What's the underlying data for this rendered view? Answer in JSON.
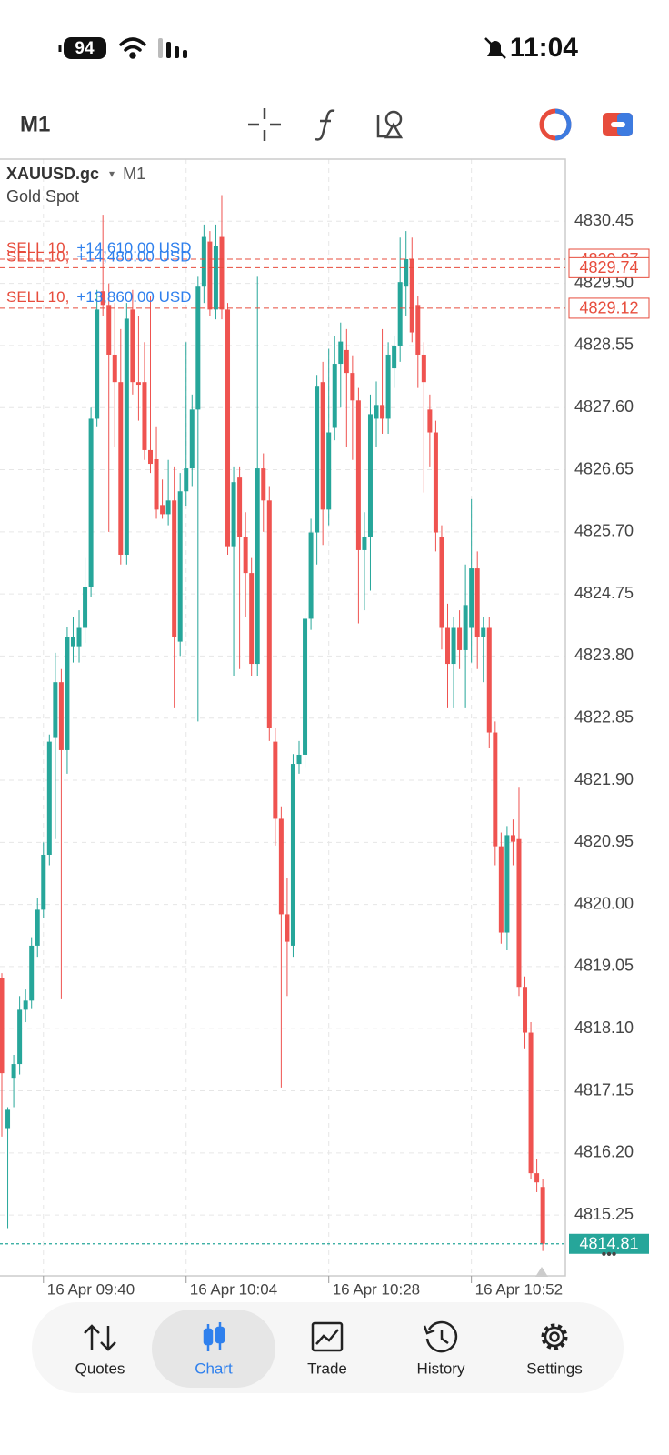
{
  "status_bar": {
    "battery": "94",
    "time": "11:04"
  },
  "toolbar": {
    "timeframe": "M1"
  },
  "chart_data": {
    "type": "candlestick",
    "symbol": "XAUUSD.gc",
    "timeframe": "M1",
    "description": "Gold Spot",
    "x": [
      "16 Apr 09:33",
      "16 Apr 09:34",
      "16 Apr 09:35",
      "16 Apr 09:36",
      "16 Apr 09:37",
      "16 Apr 09:38",
      "16 Apr 09:39",
      "16 Apr 09:40",
      "16 Apr 09:41",
      "16 Apr 09:42",
      "16 Apr 09:43",
      "16 Apr 09:44",
      "16 Apr 09:45",
      "16 Apr 09:46",
      "16 Apr 09:47",
      "16 Apr 09:48",
      "16 Apr 09:49",
      "16 Apr 09:50",
      "16 Apr 09:51",
      "16 Apr 09:52",
      "16 Apr 09:53",
      "16 Apr 09:54",
      "16 Apr 09:55",
      "16 Apr 09:56",
      "16 Apr 09:57",
      "16 Apr 09:58",
      "16 Apr 09:59",
      "16 Apr 10:00",
      "16 Apr 10:01",
      "16 Apr 10:02",
      "16 Apr 10:03",
      "16 Apr 10:04",
      "16 Apr 10:05",
      "16 Apr 10:06",
      "16 Apr 10:07",
      "16 Apr 10:08",
      "16 Apr 10:09",
      "16 Apr 10:10",
      "16 Apr 10:11",
      "16 Apr 10:12",
      "16 Apr 10:13",
      "16 Apr 10:14",
      "16 Apr 10:15",
      "16 Apr 10:16",
      "16 Apr 10:17",
      "16 Apr 10:18",
      "16 Apr 10:19",
      "16 Apr 10:20",
      "16 Apr 10:21",
      "16 Apr 10:22",
      "16 Apr 10:23",
      "16 Apr 10:24",
      "16 Apr 10:25",
      "16 Apr 10:26",
      "16 Apr 10:27",
      "16 Apr 10:28",
      "16 Apr 10:29",
      "16 Apr 10:30",
      "16 Apr 10:31",
      "16 Apr 10:32",
      "16 Apr 10:33",
      "16 Apr 10:34",
      "16 Apr 10:35",
      "16 Apr 10:36",
      "16 Apr 10:37",
      "16 Apr 10:38",
      "16 Apr 10:39",
      "16 Apr 10:40",
      "16 Apr 10:41",
      "16 Apr 10:42",
      "16 Apr 10:43",
      "16 Apr 10:44",
      "16 Apr 10:45",
      "16 Apr 10:46",
      "16 Apr 10:47",
      "16 Apr 10:48",
      "16 Apr 10:49",
      "16 Apr 10:50",
      "16 Apr 10:51",
      "16 Apr 10:52",
      "16 Apr 10:53",
      "16 Apr 10:54",
      "16 Apr 10:55",
      "16 Apr 10:56",
      "16 Apr 10:57",
      "16 Apr 10:58",
      "16 Apr 10:59",
      "16 Apr 11:00",
      "16 Apr 11:01",
      "16 Apr 11:02",
      "16 Apr 11:03",
      "16 Apr 11:04"
    ],
    "open": [
      4818.88,
      4816.58,
      4817.35,
      4817.56,
      4818.39,
      4818.53,
      4819.37,
      4819.92,
      4820.76,
      4822.56,
      4823.4,
      4822.36,
      4823.95,
      4823.95,
      4824.23,
      4824.86,
      4827.43,
      4829.38,
      4829.17,
      4828.41,
      4827.99,
      4825.35,
      4829.1,
      4827.99,
      4827.99,
      4826.95,
      4826.81,
      4826.11,
      4825.97,
      4826.18,
      4824.02,
      4826.32,
      4826.67,
      4827.57,
      4829.45,
      4830.14,
      4829.1,
      4830.21,
      4829.1,
      4825.48,
      4826.53,
      4825.62,
      4825.07,
      4823.68,
      4826.67,
      4826.18,
      4822.49,
      4821.31,
      4819.85,
      4819.37,
      4822.15,
      4822.29,
      4824.37,
      4825.69,
      4827.99,
      4826.04,
      4827.29,
      4828.27,
      4828.48,
      4828.13,
      4827.71,
      4825.42,
      4825.62,
      4827.43,
      4827.64,
      4827.43,
      4828.2,
      4828.54,
      4829.45,
      4829.87,
      4829.17,
      4828.41,
      4827.57,
      4827.22,
      4825.62,
      4824.23,
      4823.68,
      4824.23,
      4823.89,
      4824.23,
      4825.14,
      4824.09,
      4824.23,
      4822.63,
      4820.89,
      4819.57,
      4821.06,
      4821.0,
      4818.74,
      4818.04,
      4815.89,
      4815.68
    ],
    "high": [
      4818.95,
      4816.9,
      4817.7,
      4818.6,
      4818.7,
      4819.5,
      4820.1,
      4820.95,
      4822.6,
      4823.85,
      4823.6,
      4824.25,
      4824.4,
      4824.5,
      4825.3,
      4827.6,
      4829.4,
      4830.55,
      4829.5,
      4829.2,
      4828.8,
      4829.2,
      4829.4,
      4829.0,
      4828.6,
      4829.3,
      4827.3,
      4826.5,
      4826.8,
      4826.7,
      4826.6,
      4828.6,
      4827.8,
      4829.6,
      4830.4,
      4830.3,
      4830.4,
      4830.85,
      4829.2,
      4826.7,
      4826.7,
      4826.0,
      4825.3,
      4829.6,
      4826.9,
      4826.4,
      4822.7,
      4821.5,
      4820.4,
      4822.3,
      4822.5,
      4824.5,
      4825.9,
      4828.1,
      4828.3,
      4828.5,
      4828.7,
      4828.9,
      4828.8,
      4828.4,
      4827.9,
      4826.0,
      4827.8,
      4828.0,
      4828.8,
      4828.6,
      4828.7,
      4830.2,
      4830.3,
      4830.2,
      4829.3,
      4828.6,
      4827.8,
      4827.4,
      4825.8,
      4824.6,
      4824.4,
      4824.5,
      4825.2,
      4826.2,
      4825.4,
      4824.4,
      4824.4,
      4822.8,
      4821.1,
      4821.2,
      4821.3,
      4821.8,
      4818.9,
      4818.2,
      4816.1,
      4815.8
    ],
    "low": [
      4816.45,
      4815.05,
      4816.9,
      4817.4,
      4818.2,
      4818.4,
      4819.2,
      4819.8,
      4820.6,
      4821.0,
      4818.55,
      4822.0,
      4823.7,
      4823.7,
      4824.0,
      4824.7,
      4827.3,
      4829.0,
      4825.7,
      4827.0,
      4825.2,
      4825.2,
      4827.8,
      4827.4,
      4826.8,
      4826.6,
      4825.9,
      4825.9,
      4825.8,
      4823.0,
      4823.8,
      4826.1,
      4826.4,
      4822.8,
      4829.2,
      4829.0,
      4828.95,
      4828.95,
      4825.35,
      4823.5,
      4823.6,
      4824.4,
      4823.5,
      4823.5,
      4825.7,
      4822.5,
      4820.9,
      4817.2,
      4818.6,
      4819.2,
      4822.0,
      4822.1,
      4824.2,
      4825.2,
      4825.5,
      4825.8,
      4827.1,
      4827.6,
      4827.0,
      4826.8,
      4824.3,
      4824.5,
      4824.8,
      4827.0,
      4827.2,
      4827.2,
      4827.9,
      4828.3,
      4829.0,
      4828.6,
      4827.9,
      4826.3,
      4826.7,
      4825.4,
      4823.9,
      4823.0,
      4823.0,
      4823.6,
      4823.0,
      4823.7,
      4823.6,
      4823.4,
      4822.4,
      4820.6,
      4819.4,
      4819.3,
      4820.6,
      4818.6,
      4817.8,
      4815.8,
      4815.6,
      4814.7
    ],
    "close": [
      4817.42,
      4816.86,
      4817.56,
      4818.39,
      4818.53,
      4819.37,
      4819.92,
      4820.76,
      4822.49,
      4823.4,
      4822.36,
      4824.09,
      4824.09,
      4824.23,
      4824.86,
      4827.43,
      4829.1,
      4829.17,
      4828.41,
      4827.99,
      4825.35,
      4828.96,
      4827.99,
      4827.95,
      4826.95,
      4826.74,
      4826.04,
      4825.97,
      4826.18,
      4824.09,
      4826.32,
      4826.67,
      4827.57,
      4829.45,
      4830.21,
      4829.1,
      4830.07,
      4829.1,
      4825.48,
      4826.46,
      4825.62,
      4825.07,
      4823.68,
      4826.67,
      4826.18,
      4822.7,
      4821.31,
      4819.85,
      4819.43,
      4822.15,
      4822.29,
      4824.37,
      4825.69,
      4827.92,
      4826.04,
      4827.22,
      4828.27,
      4828.61,
      4828.13,
      4827.71,
      4825.42,
      4825.62,
      4827.5,
      4827.64,
      4827.43,
      4828.41,
      4828.54,
      4829.52,
      4829.87,
      4828.75,
      4828.41,
      4827.99,
      4827.22,
      4825.69,
      4824.23,
      4823.68,
      4824.23,
      4823.89,
      4824.58,
      4825.14,
      4824.09,
      4824.23,
      4822.63,
      4820.89,
      4819.57,
      4821.06,
      4820.96,
      4818.74,
      4818.04,
      4815.89,
      4815.75,
      4814.81
    ],
    "up_color": "#26a69a",
    "down_color": "#ef5350",
    "ylim": [
      4814.32,
      4831.4
    ],
    "yticks": [
      4830.45,
      {
        "value": 4829.5,
        "label": "4829.50"
      },
      4828.55,
      {
        "value": 4827.6,
        "label": "4827.60"
      },
      4826.65,
      {
        "value": 4825.7,
        "label": "4825.70"
      },
      4824.75,
      {
        "value": 4823.8,
        "label": "4823.80"
      },
      4822.85,
      {
        "value": 4821.9,
        "label": "4821.90"
      },
      4820.95,
      {
        "value": 4820.0,
        "label": "4820.00"
      },
      4819.05,
      {
        "value": 4818.1,
        "label": "4818.10"
      },
      4817.15,
      {
        "value": 4816.2,
        "label": "4816.20"
      },
      4815.25
    ],
    "xticks": [
      "16 Apr 09:40",
      "16 Apr 10:04",
      "16 Apr 10:28",
      "16 Apr 10:52"
    ],
    "grid": true,
    "orders": [
      {
        "side": "SELL 10,",
        "profit": "+14,610.00 USD",
        "price": 4829.87
      },
      {
        "side": "SELL 10,",
        "profit": "+14,480.00 USD",
        "price": 4829.74
      },
      {
        "side": "SELL 10,",
        "profit": "+13,860.00 USD",
        "price": 4829.12
      }
    ],
    "current_price": 4814.81
  },
  "nav": [
    "Quotes",
    "Chart",
    "Trade",
    "History",
    "Settings"
  ]
}
